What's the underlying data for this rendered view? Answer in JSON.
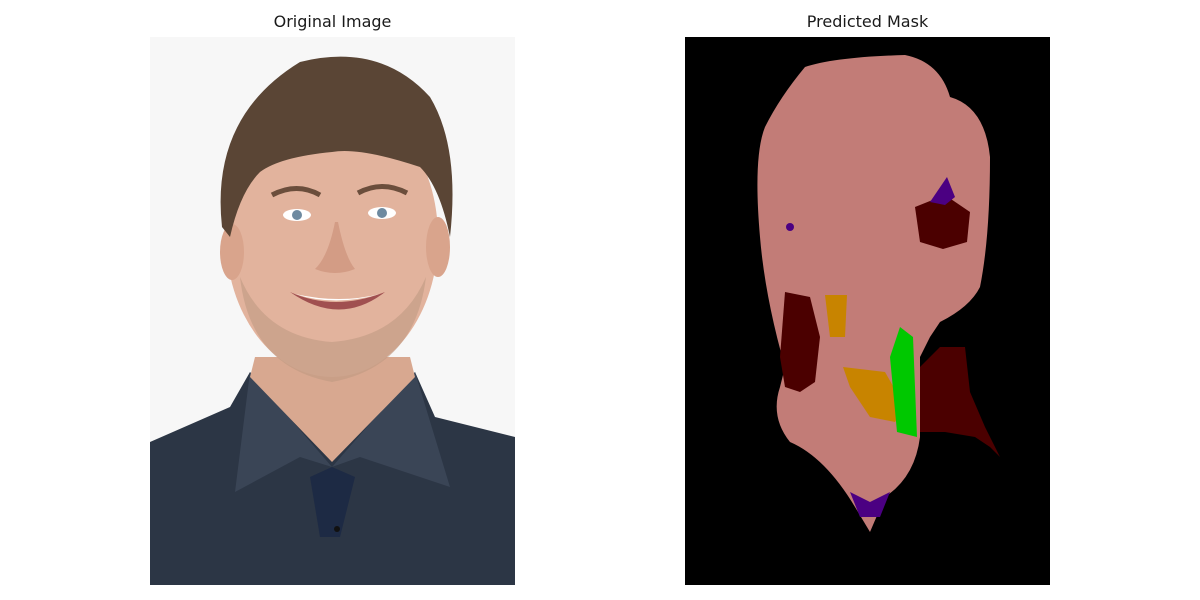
{
  "figure": {
    "left_panel": {
      "title": "Original Image"
    },
    "right_panel": {
      "title": "Predicted Mask"
    }
  },
  "mask_classes": [
    {
      "name": "skin",
      "color": "#c27c77"
    },
    {
      "name": "hair",
      "color": "#4b0000"
    },
    {
      "name": "eye",
      "color": "#4b0082"
    },
    {
      "name": "mouth",
      "color": "#c88400"
    },
    {
      "name": "nose",
      "color": "#00c800"
    },
    {
      "name": "background",
      "color": "#000000"
    }
  ],
  "photo_colors": {
    "background": "#f7f7f7",
    "skin": "#e2b39d",
    "hair": "#5a4535",
    "shirt": "#2c3645",
    "stubble": "#bf9a82"
  }
}
